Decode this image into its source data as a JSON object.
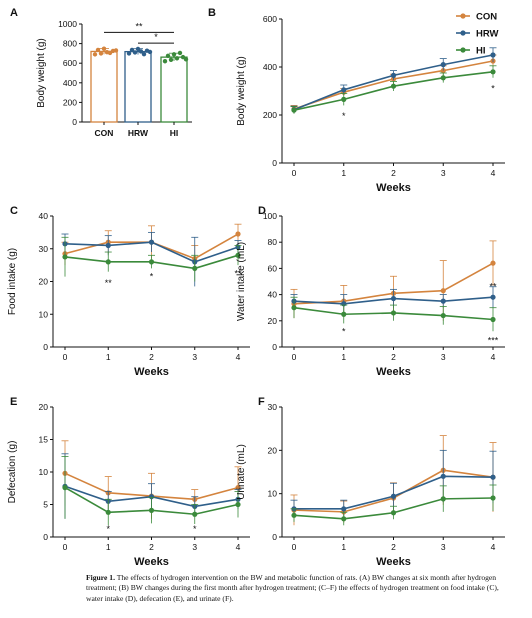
{
  "colors": {
    "CON": "#d4843e",
    "HRW": "#2f5f8a",
    "HI": "#3b8a3b",
    "axis": "#111111"
  },
  "legend": {
    "entries": [
      "CON",
      "HRW",
      "HI"
    ],
    "placement": "top-right"
  },
  "caption": {
    "label": "Figure 1.",
    "text": "The effects of hydrogen intervention on the BW and metabolic function of rats. (A) BW changes at six month after hydrogen treatment; (B) BW changes during the first month after hydrogen treatment; (C–F) the effects of hydrogen treatment on food intake (C), water intake (D), defecation (E), and urinate (F)."
  },
  "chart_data": [
    {
      "panel": "A",
      "type": "bar",
      "ylabel": "Body weight (g)",
      "xlabel": "",
      "ylim": [
        0,
        1000
      ],
      "yticks": [
        0,
        200,
        400,
        600,
        800,
        1000
      ],
      "categories": [
        "CON",
        "HRW",
        "HI"
      ],
      "values": [
        720,
        718,
        662
      ],
      "errors": [
        30,
        30,
        40
      ],
      "points": [
        [
          690,
          700,
          712,
          725,
          735,
          748,
          705,
          730
        ],
        [
          700,
          710,
          720,
          728,
          735,
          745,
          692,
          715
        ],
        [
          620,
          635,
          650,
          662,
          675,
          690,
          705,
          640
        ]
      ],
      "significance": [
        {
          "from": "CON",
          "to": "HI",
          "y": 915,
          "label": "**"
        },
        {
          "from": "HRW",
          "to": "HI",
          "y": 805,
          "label": "*"
        }
      ]
    },
    {
      "panel": "B",
      "type": "line",
      "ylabel": "Body weight (g)",
      "xlabel": "Weeks",
      "x": [
        0,
        1,
        2,
        3,
        4
      ],
      "ylim": [
        0,
        600
      ],
      "yticks": [
        0,
        200,
        400,
        600
      ],
      "series": [
        {
          "name": "CON",
          "values": [
            225,
            295,
            350,
            385,
            425
          ],
          "errors": [
            15,
            15,
            20,
            20,
            25
          ]
        },
        {
          "name": "HRW",
          "values": [
            222,
            305,
            365,
            410,
            450
          ],
          "errors": [
            15,
            20,
            20,
            25,
            30
          ]
        },
        {
          "name": "HI",
          "values": [
            220,
            265,
            320,
            355,
            380
          ],
          "errors": [
            15,
            25,
            20,
            20,
            25
          ]
        }
      ],
      "annotations": [
        {
          "x": 1,
          "y": 195,
          "label": "*"
        },
        {
          "x": 4,
          "y": 310,
          "label": "*"
        }
      ]
    },
    {
      "panel": "C",
      "type": "line",
      "ylabel": "Food intake (g)",
      "xlabel": "Weeks",
      "x": [
        0,
        1,
        2,
        3,
        4
      ],
      "ylim": [
        0,
        40
      ],
      "yticks": [
        0,
        10,
        20,
        30,
        40
      ],
      "series": [
        {
          "name": "CON",
          "values": [
            28.5,
            32,
            32,
            27,
            34.5
          ],
          "errors": [
            3.5,
            3.5,
            5,
            4,
            3
          ]
        },
        {
          "name": "HRW",
          "values": [
            31.5,
            31,
            32,
            26,
            30.5
          ],
          "errors": [
            3,
            3,
            3,
            7.5,
            2
          ]
        },
        {
          "name": "HI",
          "values": [
            27.5,
            26,
            26,
            24,
            28
          ],
          "errors": [
            6,
            3,
            2,
            4,
            3
          ]
        }
      ],
      "annotations": [
        {
          "x": 1,
          "y": 19.5,
          "label": "**"
        },
        {
          "x": 2,
          "y": 21.5,
          "label": "*"
        },
        {
          "x": 4,
          "y": 22.5,
          "label": "**"
        }
      ]
    },
    {
      "panel": "D",
      "type": "line",
      "ylabel": "Water intake (mL)",
      "xlabel": "Weeks",
      "x": [
        0,
        1,
        2,
        3,
        4
      ],
      "ylim": [
        0,
        100
      ],
      "yticks": [
        0,
        20,
        40,
        60,
        80,
        100
      ],
      "series": [
        {
          "name": "CON",
          "values": [
            33,
            35,
            41,
            43,
            64
          ],
          "errors": [
            11,
            12,
            13,
            23,
            17
          ]
        },
        {
          "name": "HRW",
          "values": [
            35,
            33,
            37,
            35,
            38
          ],
          "errors": [
            5,
            7,
            7,
            5,
            8
          ]
        },
        {
          "name": "HI",
          "values": [
            30,
            25,
            26,
            24,
            21
          ],
          "errors": [
            8,
            7,
            6,
            7,
            9
          ]
        }
      ],
      "annotations": [
        {
          "x": 1,
          "y": 12,
          "label": "*"
        },
        {
          "x": 4,
          "y": 46,
          "label": "**"
        },
        {
          "x": 4,
          "y": 5,
          "label": "***"
        }
      ]
    },
    {
      "panel": "E",
      "type": "line",
      "ylabel": "Defecation (g)",
      "xlabel": "Weeks",
      "x": [
        0,
        1,
        2,
        3,
        4
      ],
      "ylim": [
        0,
        20
      ],
      "yticks": [
        0,
        5,
        10,
        15,
        20
      ],
      "series": [
        {
          "name": "CON",
          "values": [
            9.8,
            6.8,
            6.3,
            5.8,
            7.6
          ],
          "errors": [
            5,
            2.5,
            3.5,
            1.5,
            3.2
          ]
        },
        {
          "name": "HRW",
          "values": [
            7.8,
            5.5,
            6.2,
            4.7,
            5.8
          ],
          "errors": [
            5,
            1.5,
            2,
            1.5,
            1.5
          ]
        },
        {
          "name": "HI",
          "values": [
            7.6,
            3.8,
            4.1,
            3.5,
            5
          ],
          "errors": [
            4.8,
            2,
            2,
            1.5,
            2
          ]
        }
      ],
      "annotations": [
        {
          "x": 1,
          "y": 1.2,
          "label": "*"
        },
        {
          "x": 3,
          "y": 1.2,
          "label": "*"
        }
      ]
    },
    {
      "panel": "F",
      "type": "line",
      "ylabel": "Urinate (mL)",
      "xlabel": "Weeks",
      "x": [
        0,
        1,
        2,
        3,
        4
      ],
      "ylim": [
        0,
        30
      ],
      "yticks": [
        0,
        10,
        20,
        30
      ],
      "series": [
        {
          "name": "CON",
          "values": [
            6.2,
            5.8,
            9,
            15.4,
            13.8
          ],
          "errors": [
            3.5,
            2.5,
            3.5,
            8,
            8
          ]
        },
        {
          "name": "HRW",
          "values": [
            6.5,
            6.5,
            9.4,
            14,
            13.8
          ],
          "errors": [
            2,
            2,
            3,
            6,
            6
          ]
        },
        {
          "name": "HI",
          "values": [
            5,
            4.2,
            5.6,
            8.8,
            9
          ],
          "errors": [
            1.5,
            1.5,
            1.5,
            3,
            3
          ]
        }
      ],
      "annotations": []
    }
  ]
}
